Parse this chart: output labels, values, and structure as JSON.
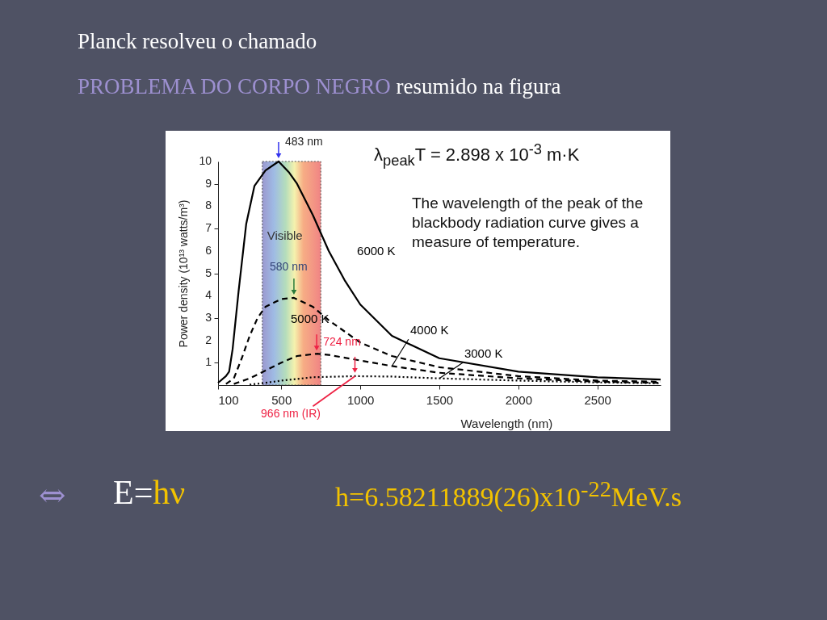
{
  "chart_data": {
    "type": "line",
    "title": "Planck resolveu o chamado",
    "subtitle": "PROBLEMA DO CORPO NEGRO resumido na figura",
    "xlabel": "Wavelength (nm)",
    "ylabel": "Power density (10¹³ watts/m³)",
    "xlim": [
      100,
      2900
    ],
    "xticks": [
      100,
      500,
      1000,
      1500,
      2000,
      2500
    ],
    "ylim": [
      0,
      10
    ],
    "yticks": [
      1,
      2,
      3,
      4,
      5,
      6,
      7,
      8,
      9,
      10
    ],
    "series": [
      {
        "name": "6000 K",
        "color": "#000000",
        "line_style": "solid",
        "x": [
          100,
          150,
          170,
          192,
          230,
          278,
          330,
          400,
          483,
          550,
          600,
          700,
          800,
          900,
          1000,
          1200,
          1500,
          2000,
          2500,
          2900
        ],
        "values": [
          0.1,
          0.4,
          0.6,
          1.6,
          4.2,
          7.2,
          8.9,
          9.6,
          10,
          9.5,
          9.0,
          7.6,
          6.0,
          4.7,
          3.6,
          2.2,
          1.2,
          0.6,
          0.35,
          0.25
        ]
      },
      {
        "name": "5000 K",
        "color": "#000000",
        "line_style": "dashed",
        "x": [
          150,
          200,
          250,
          300,
          350,
          400,
          500,
          580,
          700,
          800,
          900,
          1000,
          1200,
          1500,
          2000,
          2500,
          2900
        ],
        "values": [
          0.05,
          0.3,
          1.2,
          2.2,
          3.0,
          3.5,
          3.85,
          3.9,
          3.5,
          2.9,
          2.4,
          1.9,
          1.3,
          0.8,
          0.4,
          0.2,
          0.15
        ]
      },
      {
        "name": "4000 K",
        "color": "#000000",
        "line_style": "dashed",
        "x": [
          200,
          300,
          400,
          500,
          600,
          724,
          800,
          1000,
          1200,
          1500,
          2000,
          2500,
          2900
        ],
        "values": [
          0.05,
          0.3,
          0.65,
          1.0,
          1.3,
          1.4,
          1.35,
          1.1,
          0.85,
          0.55,
          0.3,
          0.15,
          0.1
        ]
      },
      {
        "name": "3000 K",
        "color": "#000000",
        "line_style": "dotted",
        "x": [
          300,
          400,
          500,
          700,
          966,
          1200,
          1500,
          2000,
          2500,
          2900
        ],
        "values": [
          0.02,
          0.1,
          0.2,
          0.35,
          0.4,
          0.38,
          0.3,
          0.2,
          0.12,
          0.08
        ]
      }
    ],
    "bands": [
      {
        "axis": "x",
        "from": 380,
        "to": 750,
        "label": "Visible"
      }
    ],
    "annotations": [
      "λ$_{peak}$T = 2.898  x 10$^{-3}$ m·K",
      "The wavelength of the peak of the blackbody radiation curve gives a measure of temperature.",
      {
        "text": "483 nm",
        "x": 483,
        "y": 10
      },
      {
        "text": "580 nm",
        "x": 580,
        "y": 3.9
      },
      {
        "text": "724 nm",
        "x": 724,
        "y": 1.4
      },
      {
        "text": "966 nm (IR)",
        "x": 966,
        "y": 0.4
      },
      "⇔",
      "E=hν",
      "h=6.58211889(26)x10$^{-22}$MeV.s"
    ]
  }
}
